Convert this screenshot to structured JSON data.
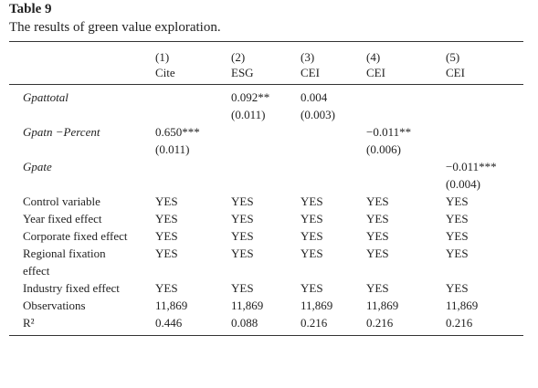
{
  "title": "Table 9",
  "caption": "The results of green value exploration.",
  "table": {
    "header": [
      [
        "(1)",
        "Cite"
      ],
      [
        "(2)",
        "ESG"
      ],
      [
        "(3)",
        "CEI"
      ],
      [
        "(4)",
        "CEI"
      ],
      [
        "(5)",
        "CEI"
      ]
    ],
    "rows": [
      {
        "label": "Gpattotal",
        "cells": [
          null,
          [
            "0.092**",
            "(0.011)"
          ],
          [
            "0.004",
            "(0.003)"
          ],
          null,
          null
        ]
      },
      {
        "label": "Gpatn −Percent",
        "cells": [
          [
            "0.650***",
            "(0.011)"
          ],
          null,
          null,
          [
            "−0.011**",
            "(0.006)"
          ],
          null
        ]
      },
      {
        "label": "Gpate",
        "cells": [
          null,
          null,
          null,
          null,
          [
            "−0.011***",
            "(0.004)"
          ]
        ]
      },
      {
        "label": "Control variable",
        "cells": [
          [
            "YES"
          ],
          [
            "YES"
          ],
          [
            "YES"
          ],
          [
            "YES"
          ],
          [
            "YES"
          ]
        ]
      },
      {
        "label": "Year fixed effect",
        "cells": [
          [
            "YES"
          ],
          [
            "YES"
          ],
          [
            "YES"
          ],
          [
            "YES"
          ],
          [
            "YES"
          ]
        ]
      },
      {
        "label": "Corporate fixed effect",
        "cells": [
          [
            "YES"
          ],
          [
            "YES"
          ],
          [
            "YES"
          ],
          [
            "YES"
          ],
          [
            "YES"
          ]
        ]
      },
      {
        "label": "Regional fixation effect",
        "cells": [
          [
            "YES"
          ],
          [
            "YES"
          ],
          [
            "YES"
          ],
          [
            "YES"
          ],
          [
            "YES"
          ]
        ]
      },
      {
        "label": "Industry fixed effect",
        "cells": [
          [
            "YES"
          ],
          [
            "YES"
          ],
          [
            "YES"
          ],
          [
            "YES"
          ],
          [
            "YES"
          ]
        ]
      },
      {
        "label": "Observations",
        "cells": [
          [
            "11,869"
          ],
          [
            "11,869"
          ],
          [
            "11,869"
          ],
          [
            "11,869"
          ],
          [
            "11,869"
          ]
        ]
      },
      {
        "label": "R²",
        "cells": [
          [
            "0.446"
          ],
          [
            "0.088"
          ],
          [
            "0.216"
          ],
          [
            "0.216"
          ],
          [
            "0.216"
          ]
        ]
      }
    ]
  }
}
